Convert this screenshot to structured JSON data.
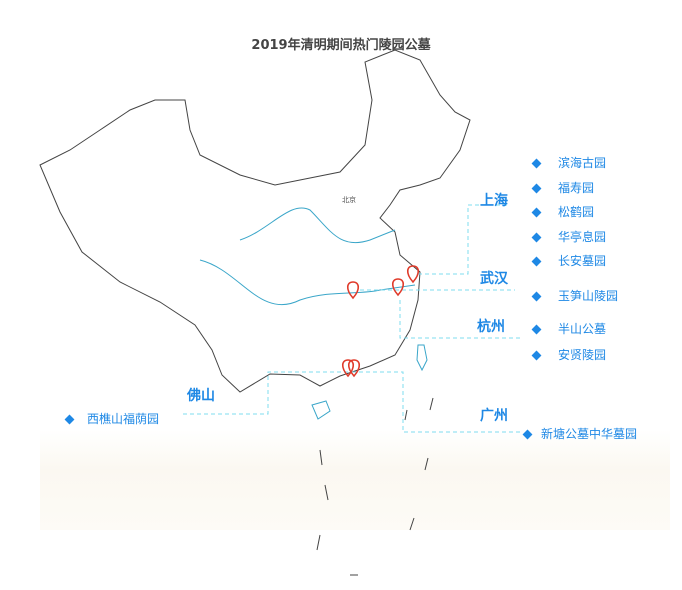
{
  "title": "2019年清明期间热门陵园公墓",
  "capital_label": "北京",
  "accent_color": "#1e88e5",
  "line_color": "#7fdcef",
  "marker_color": "#e03a2a",
  "groups": [
    {
      "city": "上海",
      "cemeteries": [
        "滨海古园",
        "福寿园",
        "松鹤园",
        "华亭息园",
        "长安墓园"
      ]
    },
    {
      "city": "武汉",
      "cemeteries": [
        "玉笋山陵园"
      ]
    },
    {
      "city": "杭州",
      "cemeteries": [
        "半山公墓",
        "安贤陵园"
      ]
    },
    {
      "city": "广州",
      "cemeteries": [
        "新塘公墓中华墓园"
      ]
    },
    {
      "city": "佛山",
      "cemeteries": [
        "西樵山福荫园"
      ]
    }
  ]
}
